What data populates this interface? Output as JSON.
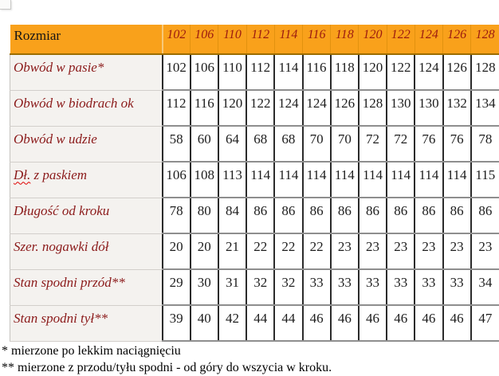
{
  "colors": {
    "header_bg": "#f9a11b",
    "header_size_text": "#9c1b10",
    "row_label_text": "#8b1a1a",
    "label_bg": "#f4f2ef",
    "squiggle": "#e00000"
  },
  "table": {
    "header": {
      "label": "Rozmiar",
      "sizes": [
        "102",
        "106",
        "110",
        "112",
        "114",
        "116",
        "118",
        "120",
        "122",
        "124",
        "126",
        "128"
      ]
    },
    "rows": [
      {
        "label": "Obwód w pasie*",
        "values": [
          "102",
          "106",
          "110",
          "112",
          "114",
          "116",
          "118",
          "120",
          "122",
          "124",
          "126",
          "128"
        ]
      },
      {
        "label": "Obwód w biodrach ok",
        "values": [
          "112",
          "116",
          "120",
          "122",
          "124",
          "124",
          "126",
          "128",
          "130",
          "130",
          "132",
          "134"
        ]
      },
      {
        "label": "Obwód w udzie",
        "values": [
          "58",
          "60",
          "64",
          "68",
          "68",
          "70",
          "70",
          "72",
          "72",
          "76",
          "76",
          "78"
        ]
      },
      {
        "label": "Dł. z paskiem",
        "label_parts": [
          {
            "text": "Dł.",
            "squiggle": true
          },
          {
            "text": " z paskiem",
            "squiggle": false
          }
        ],
        "values": [
          "106",
          "108",
          "113",
          "114",
          "114",
          "114",
          "114",
          "114",
          "114",
          "114",
          "114",
          "115"
        ]
      },
      {
        "label": "Długość od kroku",
        "values": [
          "78",
          "80",
          "84",
          "86",
          "86",
          "86",
          "86",
          "86",
          "86",
          "86",
          "86",
          "86"
        ]
      },
      {
        "label": "Szer. nogawki dół",
        "values": [
          "20",
          "20",
          "21",
          "22",
          "22",
          "22",
          "23",
          "23",
          "23",
          "23",
          "23",
          "23"
        ]
      },
      {
        "label": "Stan spodni przód**",
        "values": [
          "29",
          "30",
          "31",
          "32",
          "32",
          "33",
          "33",
          "33",
          "33",
          "33",
          "33",
          "34"
        ]
      },
      {
        "label": "Stan spodni tył**",
        "values": [
          "39",
          "40",
          "42",
          "44",
          "44",
          "46",
          "46",
          "46",
          "46",
          "46",
          "46",
          "47"
        ]
      }
    ]
  },
  "footnotes": [
    "* mierzone po lekkim naciągnięciu",
    "** mierzone z przodu/tyłu spodni - od góry do wszycia w kroku."
  ]
}
